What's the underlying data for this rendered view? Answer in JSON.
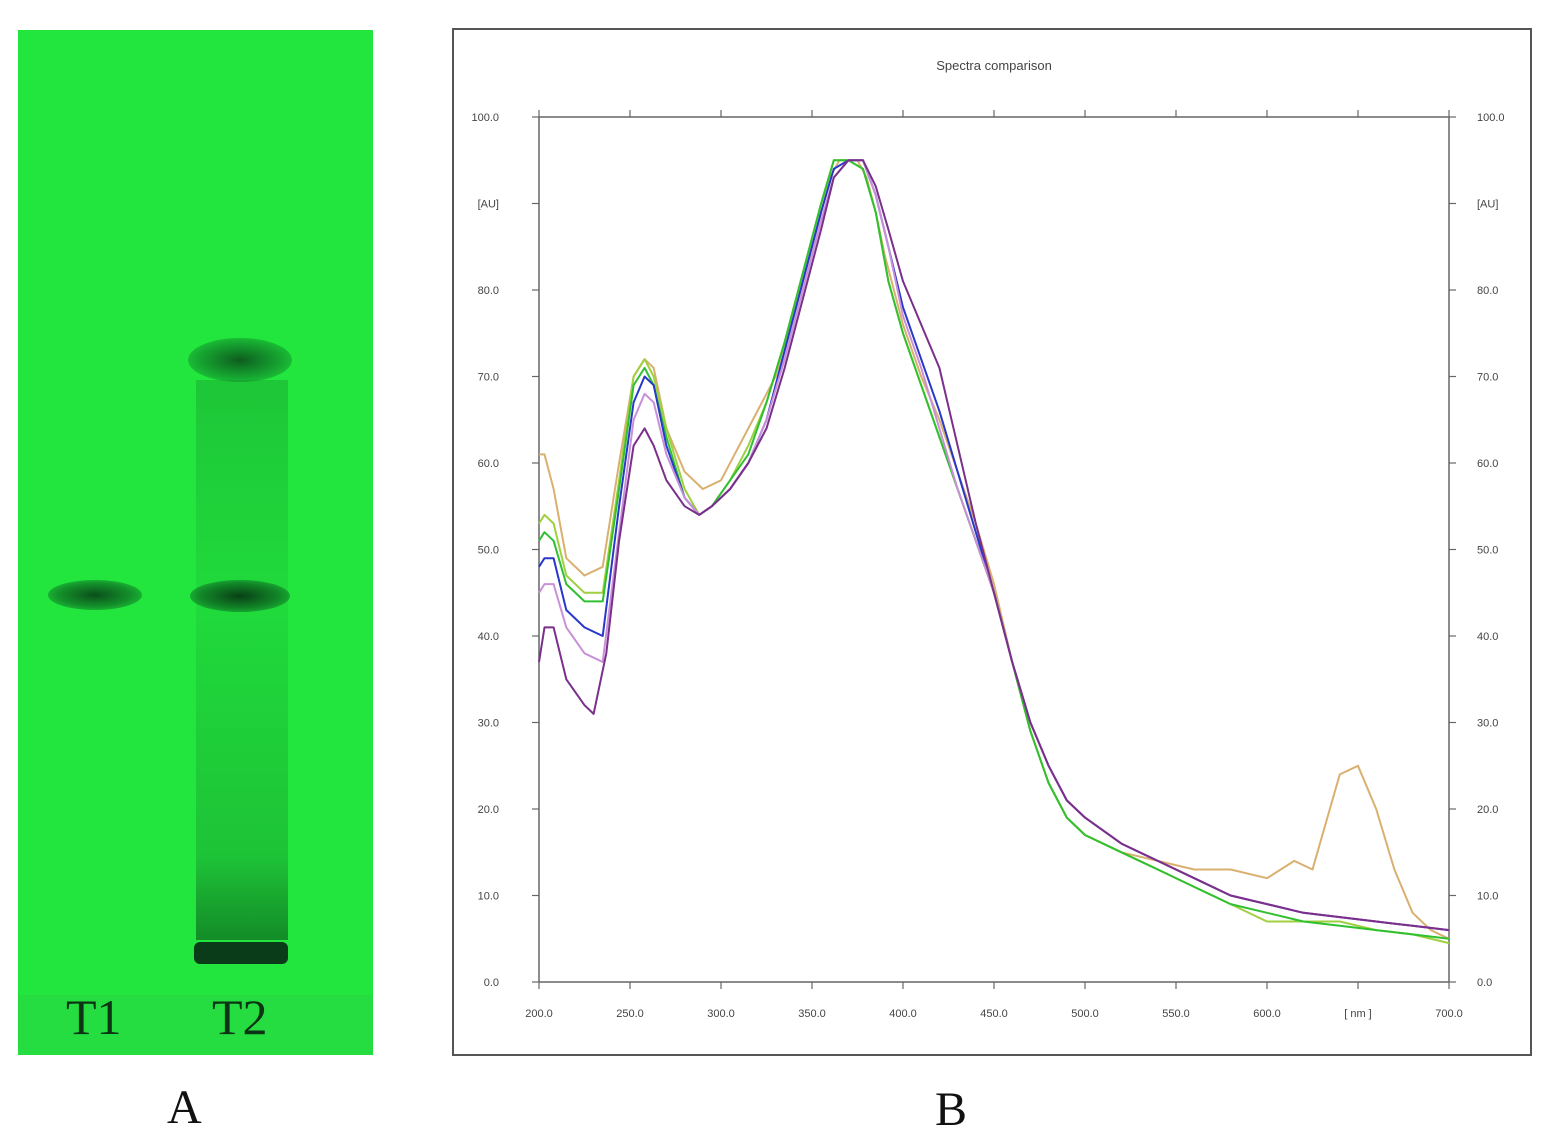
{
  "panel_a": {
    "lanes": [
      "T1",
      "T2"
    ],
    "letter": "A"
  },
  "panel_b": {
    "letter": "B"
  },
  "chart_data": {
    "type": "line",
    "title": "Spectra comparison",
    "xlabel": "[ nm ]",
    "ylabel": "[AU]",
    "xlim": [
      200,
      700
    ],
    "ylim": [
      0,
      100
    ],
    "x_ticks": [
      "200.0",
      "250.0",
      "300.0",
      "350.0",
      "400.0",
      "450.0",
      "500.0",
      "550.0",
      "600.0",
      "[ nm ]",
      "700.0"
    ],
    "y_ticks": [
      "0.0",
      "10.0",
      "20.0",
      "30.0",
      "40.0",
      "50.0",
      "60.0",
      "70.0",
      "80.0",
      "[AU]",
      "100.0"
    ],
    "grid": false,
    "series": [
      {
        "color": "#d9b070",
        "points": [
          [
            200,
            61
          ],
          [
            203,
            61
          ],
          [
            208,
            57
          ],
          [
            215,
            49
          ],
          [
            225,
            47
          ],
          [
            235,
            48
          ],
          [
            244,
            60
          ],
          [
            252,
            70
          ],
          [
            258,
            72
          ],
          [
            263,
            71
          ],
          [
            270,
            64
          ],
          [
            280,
            59
          ],
          [
            290,
            57
          ],
          [
            300,
            58
          ],
          [
            310,
            62
          ],
          [
            320,
            66
          ],
          [
            330,
            70
          ],
          [
            340,
            77
          ],
          [
            350,
            85
          ],
          [
            360,
            93
          ],
          [
            365,
            95
          ],
          [
            370,
            95
          ],
          [
            375,
            95
          ],
          [
            380,
            93
          ],
          [
            385,
            89
          ],
          [
            390,
            84
          ],
          [
            400,
            76
          ],
          [
            410,
            70
          ],
          [
            420,
            65
          ],
          [
            430,
            59
          ],
          [
            440,
            53
          ],
          [
            450,
            46
          ],
          [
            460,
            37
          ],
          [
            470,
            29
          ],
          [
            480,
            23
          ],
          [
            490,
            19
          ],
          [
            500,
            17
          ],
          [
            520,
            15
          ],
          [
            540,
            14
          ],
          [
            560,
            13
          ],
          [
            580,
            13
          ],
          [
            600,
            12
          ],
          [
            615,
            14
          ],
          [
            625,
            13
          ],
          [
            640,
            24
          ],
          [
            650,
            25
          ],
          [
            660,
            20
          ],
          [
            670,
            13
          ],
          [
            680,
            8
          ],
          [
            690,
            6
          ],
          [
            700,
            5
          ]
        ]
      },
      {
        "color": "#a0cf40",
        "points": [
          [
            200,
            53
          ],
          [
            203,
            54
          ],
          [
            208,
            53
          ],
          [
            215,
            47
          ],
          [
            225,
            45
          ],
          [
            235,
            45
          ],
          [
            244,
            58
          ],
          [
            252,
            70
          ],
          [
            258,
            72
          ],
          [
            263,
            70
          ],
          [
            270,
            64
          ],
          [
            280,
            57
          ],
          [
            288,
            54
          ],
          [
            295,
            55
          ],
          [
            305,
            58
          ],
          [
            315,
            62
          ],
          [
            325,
            67
          ],
          [
            335,
            74
          ],
          [
            345,
            82
          ],
          [
            355,
            90
          ],
          [
            362,
            95
          ],
          [
            370,
            95
          ],
          [
            378,
            94
          ],
          [
            385,
            89
          ],
          [
            392,
            81
          ],
          [
            400,
            75
          ],
          [
            410,
            69
          ],
          [
            420,
            63
          ],
          [
            430,
            57
          ],
          [
            440,
            51
          ],
          [
            450,
            45
          ],
          [
            460,
            37
          ],
          [
            470,
            29
          ],
          [
            480,
            23
          ],
          [
            490,
            19
          ],
          [
            500,
            17
          ],
          [
            520,
            15
          ],
          [
            540,
            13
          ],
          [
            560,
            11
          ],
          [
            580,
            9
          ],
          [
            600,
            7
          ],
          [
            620,
            7
          ],
          [
            640,
            7
          ],
          [
            660,
            6
          ],
          [
            680,
            5.5
          ],
          [
            700,
            4.5
          ]
        ]
      },
      {
        "color": "#30c030",
        "points": [
          [
            200,
            51
          ],
          [
            203,
            52
          ],
          [
            208,
            51
          ],
          [
            215,
            46
          ],
          [
            225,
            44
          ],
          [
            235,
            44
          ],
          [
            244,
            57
          ],
          [
            252,
            69
          ],
          [
            258,
            71
          ],
          [
            263,
            69
          ],
          [
            270,
            63
          ],
          [
            280,
            56
          ],
          [
            288,
            54
          ],
          [
            295,
            55
          ],
          [
            305,
            58
          ],
          [
            315,
            61
          ],
          [
            325,
            67
          ],
          [
            335,
            74
          ],
          [
            345,
            82
          ],
          [
            355,
            90
          ],
          [
            362,
            95
          ],
          [
            370,
            95
          ],
          [
            378,
            94
          ],
          [
            385,
            89
          ],
          [
            392,
            81
          ],
          [
            400,
            75
          ],
          [
            410,
            69
          ],
          [
            420,
            63
          ],
          [
            430,
            57
          ],
          [
            440,
            51
          ],
          [
            450,
            45
          ],
          [
            460,
            37
          ],
          [
            470,
            29
          ],
          [
            480,
            23
          ],
          [
            490,
            19
          ],
          [
            500,
            17
          ],
          [
            520,
            15
          ],
          [
            540,
            13
          ],
          [
            560,
            11
          ],
          [
            580,
            9
          ],
          [
            600,
            8
          ],
          [
            620,
            7
          ],
          [
            640,
            6.5
          ],
          [
            660,
            6
          ],
          [
            680,
            5.5
          ],
          [
            700,
            5
          ]
        ]
      },
      {
        "color": "#2838c8",
        "points": [
          [
            200,
            48
          ],
          [
            203,
            49
          ],
          [
            208,
            49
          ],
          [
            215,
            43
          ],
          [
            225,
            41
          ],
          [
            235,
            40
          ],
          [
            244,
            55
          ],
          [
            252,
            67
          ],
          [
            258,
            70
          ],
          [
            263,
            69
          ],
          [
            270,
            62
          ],
          [
            280,
            56
          ],
          [
            288,
            54
          ],
          [
            295,
            55
          ],
          [
            305,
            57
          ],
          [
            315,
            60
          ],
          [
            325,
            65
          ],
          [
            335,
            73
          ],
          [
            345,
            81
          ],
          [
            355,
            89
          ],
          [
            362,
            94
          ],
          [
            370,
            95
          ],
          [
            378,
            95
          ],
          [
            385,
            91
          ],
          [
            392,
            85
          ],
          [
            400,
            78
          ],
          [
            410,
            72
          ],
          [
            420,
            66
          ],
          [
            430,
            59
          ],
          [
            440,
            52
          ],
          [
            450,
            45
          ],
          [
            460,
            37
          ],
          [
            470,
            30
          ],
          [
            480,
            25
          ],
          [
            490,
            21
          ],
          [
            500,
            19
          ],
          [
            520,
            16
          ],
          [
            540,
            14
          ],
          [
            560,
            12
          ],
          [
            580,
            10
          ],
          [
            600,
            9
          ],
          [
            620,
            8
          ],
          [
            640,
            7.5
          ],
          [
            660,
            7
          ],
          [
            680,
            6.5
          ],
          [
            700,
            6
          ]
        ]
      },
      {
        "color": "#c890d8",
        "points": [
          [
            200,
            45
          ],
          [
            203,
            46
          ],
          [
            208,
            46
          ],
          [
            215,
            41
          ],
          [
            225,
            38
          ],
          [
            235,
            37
          ],
          [
            244,
            52
          ],
          [
            252,
            65
          ],
          [
            258,
            68
          ],
          [
            263,
            67
          ],
          [
            270,
            61
          ],
          [
            280,
            56
          ],
          [
            288,
            54
          ],
          [
            295,
            55
          ],
          [
            305,
            57
          ],
          [
            315,
            60
          ],
          [
            325,
            65
          ],
          [
            335,
            72
          ],
          [
            345,
            80
          ],
          [
            355,
            88
          ],
          [
            362,
            93
          ],
          [
            370,
            95
          ],
          [
            378,
            95
          ],
          [
            385,
            91
          ],
          [
            392,
            85
          ],
          [
            400,
            77
          ],
          [
            410,
            71
          ],
          [
            420,
            64
          ],
          [
            430,
            57
          ],
          [
            440,
            51
          ],
          [
            450,
            45
          ],
          [
            460,
            37
          ],
          [
            470,
            30
          ],
          [
            480,
            25
          ],
          [
            490,
            21
          ],
          [
            500,
            19
          ],
          [
            520,
            16
          ],
          [
            540,
            14
          ],
          [
            560,
            12
          ],
          [
            580,
            10
          ],
          [
            600,
            9
          ],
          [
            620,
            8
          ],
          [
            640,
            7.5
          ],
          [
            660,
            7
          ],
          [
            680,
            6.5
          ],
          [
            700,
            6
          ]
        ]
      },
      {
        "color": "#7a2f8a",
        "points": [
          [
            200,
            37
          ],
          [
            203,
            41
          ],
          [
            208,
            41
          ],
          [
            215,
            35
          ],
          [
            225,
            32
          ],
          [
            230,
            31
          ],
          [
            237,
            38
          ],
          [
            244,
            51
          ],
          [
            252,
            62
          ],
          [
            258,
            64
          ],
          [
            263,
            62
          ],
          [
            270,
            58
          ],
          [
            280,
            55
          ],
          [
            288,
            54
          ],
          [
            295,
            55
          ],
          [
            305,
            57
          ],
          [
            315,
            60
          ],
          [
            325,
            64
          ],
          [
            335,
            71
          ],
          [
            345,
            79
          ],
          [
            355,
            87
          ],
          [
            362,
            93
          ],
          [
            370,
            95
          ],
          [
            378,
            95
          ],
          [
            385,
            92
          ],
          [
            392,
            87
          ],
          [
            400,
            81
          ],
          [
            410,
            76
          ],
          [
            420,
            71
          ],
          [
            430,
            62
          ],
          [
            440,
            53
          ],
          [
            450,
            45
          ],
          [
            460,
            37
          ],
          [
            470,
            30
          ],
          [
            480,
            25
          ],
          [
            490,
            21
          ],
          [
            500,
            19
          ],
          [
            520,
            16
          ],
          [
            540,
            14
          ],
          [
            560,
            12
          ],
          [
            580,
            10
          ],
          [
            600,
            9
          ],
          [
            620,
            8
          ],
          [
            640,
            7.5
          ],
          [
            660,
            7
          ],
          [
            680,
            6.5
          ],
          [
            700,
            6
          ]
        ]
      }
    ]
  }
}
